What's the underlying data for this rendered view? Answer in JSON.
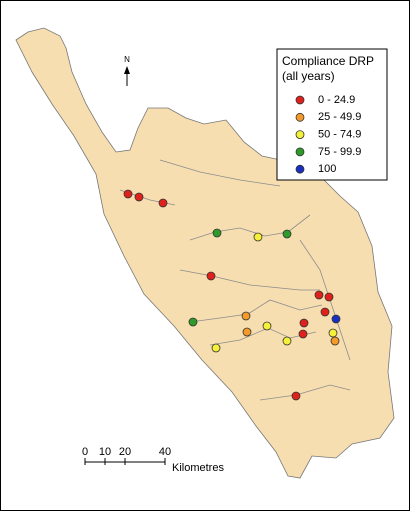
{
  "legend": {
    "title": "Compliance DRP",
    "subtitle": "(all years)",
    "items": [
      {
        "label": "0 - 24.9",
        "color": "#e0211b"
      },
      {
        "label": "25 - 49.9",
        "color": "#f39a2a"
      },
      {
        "label": "50 - 74.9",
        "color": "#f5f03a"
      },
      {
        "label": "75 - 99.9",
        "color": "#2f9a2a"
      },
      {
        "label": "100",
        "color": "#1a2fbf"
      }
    ]
  },
  "north_arrow": "N",
  "scale_bar": {
    "ticks": [
      0,
      10,
      20,
      40
    ],
    "unit": "Kilometres"
  }
}
